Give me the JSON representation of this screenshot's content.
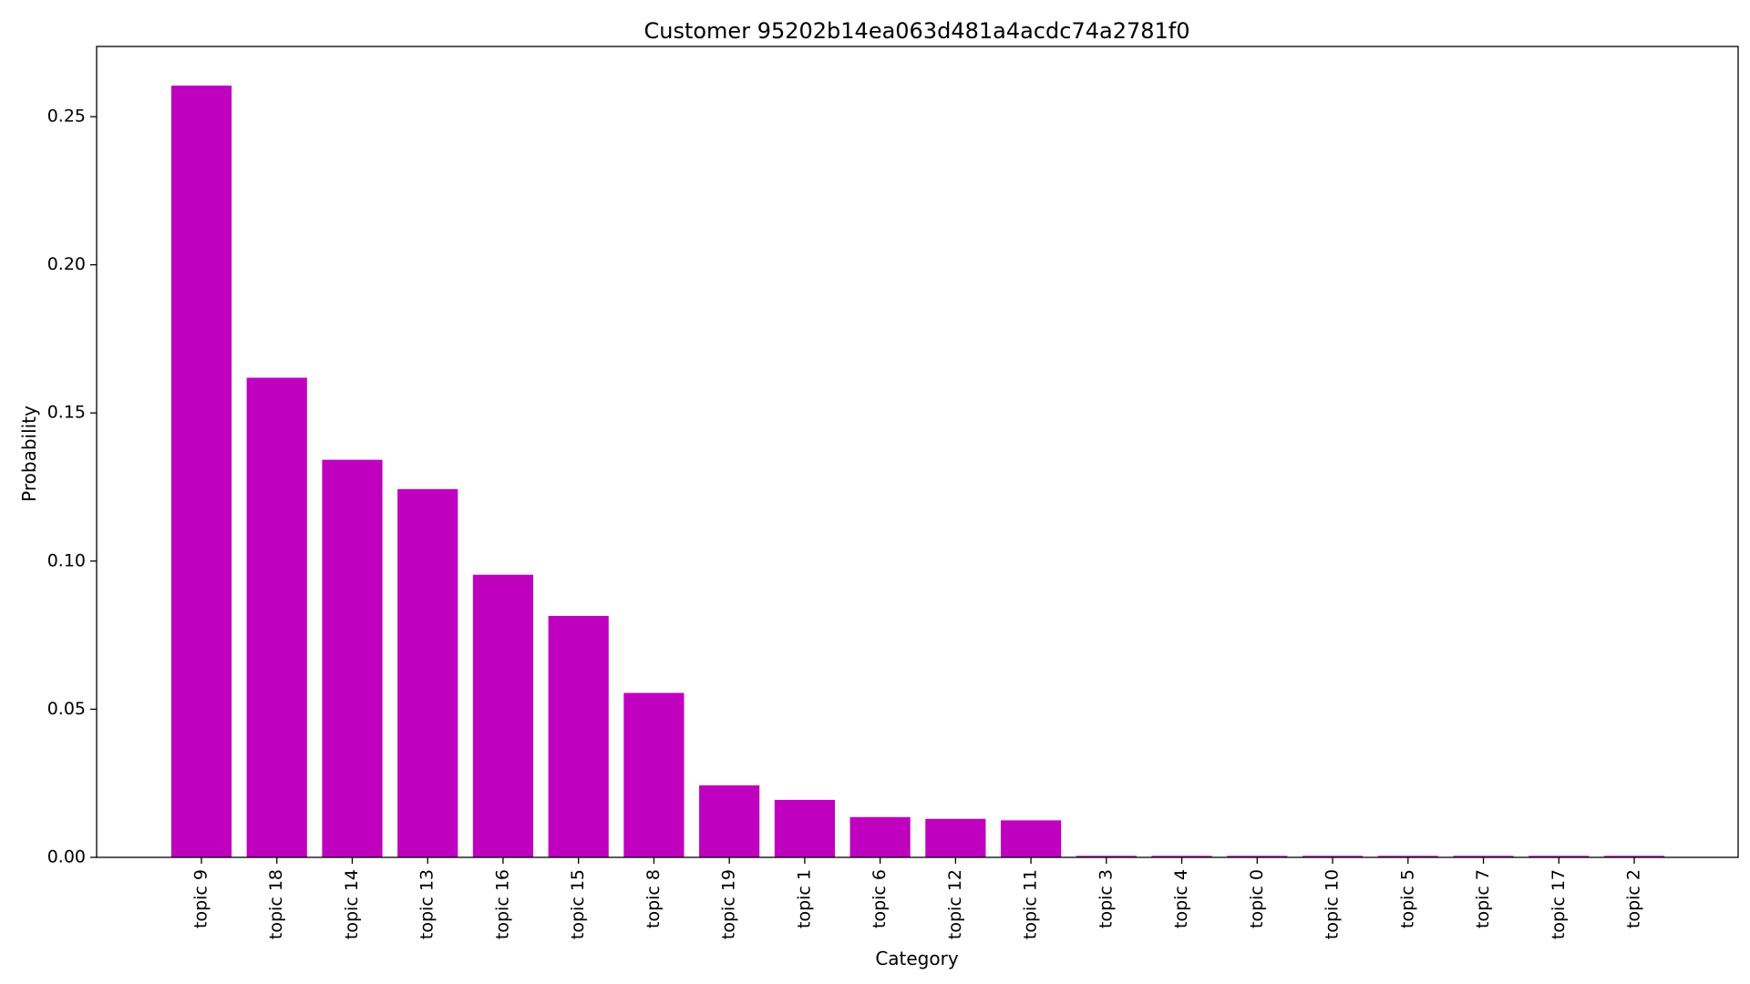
{
  "chart_data": {
    "type": "bar",
    "title": "Customer 95202b14ea063d481a4acdc74a2781f0",
    "xlabel": "Category",
    "ylabel": "Probability",
    "categories": [
      "topic 9",
      "topic 18",
      "topic 14",
      "topic 13",
      "topic 16",
      "topic 15",
      "topic 8",
      "topic 19",
      "topic 1",
      "topic 6",
      "topic 12",
      "topic 11",
      "topic 3",
      "topic 4",
      "topic 0",
      "topic 10",
      "topic 5",
      "topic 7",
      "topic 17",
      "topic 2"
    ],
    "values": [
      0.2605,
      0.1619,
      0.1342,
      0.1243,
      0.0954,
      0.0815,
      0.0555,
      0.0243,
      0.0194,
      0.0136,
      0.013,
      0.0125,
      0.0005,
      0.0005,
      0.0005,
      0.0005,
      0.0005,
      0.0005,
      0.0005,
      0.0005
    ],
    "ylim": [
      0,
      0.2737
    ],
    "yticks": [
      0.0,
      0.05,
      0.1,
      0.15,
      0.2,
      0.25
    ],
    "ytick_labels": [
      "0.00",
      "0.05",
      "0.10",
      "0.15",
      "0.20",
      "0.25"
    ],
    "grid": false,
    "legend": "none",
    "bar_color": "#bf00bf"
  }
}
